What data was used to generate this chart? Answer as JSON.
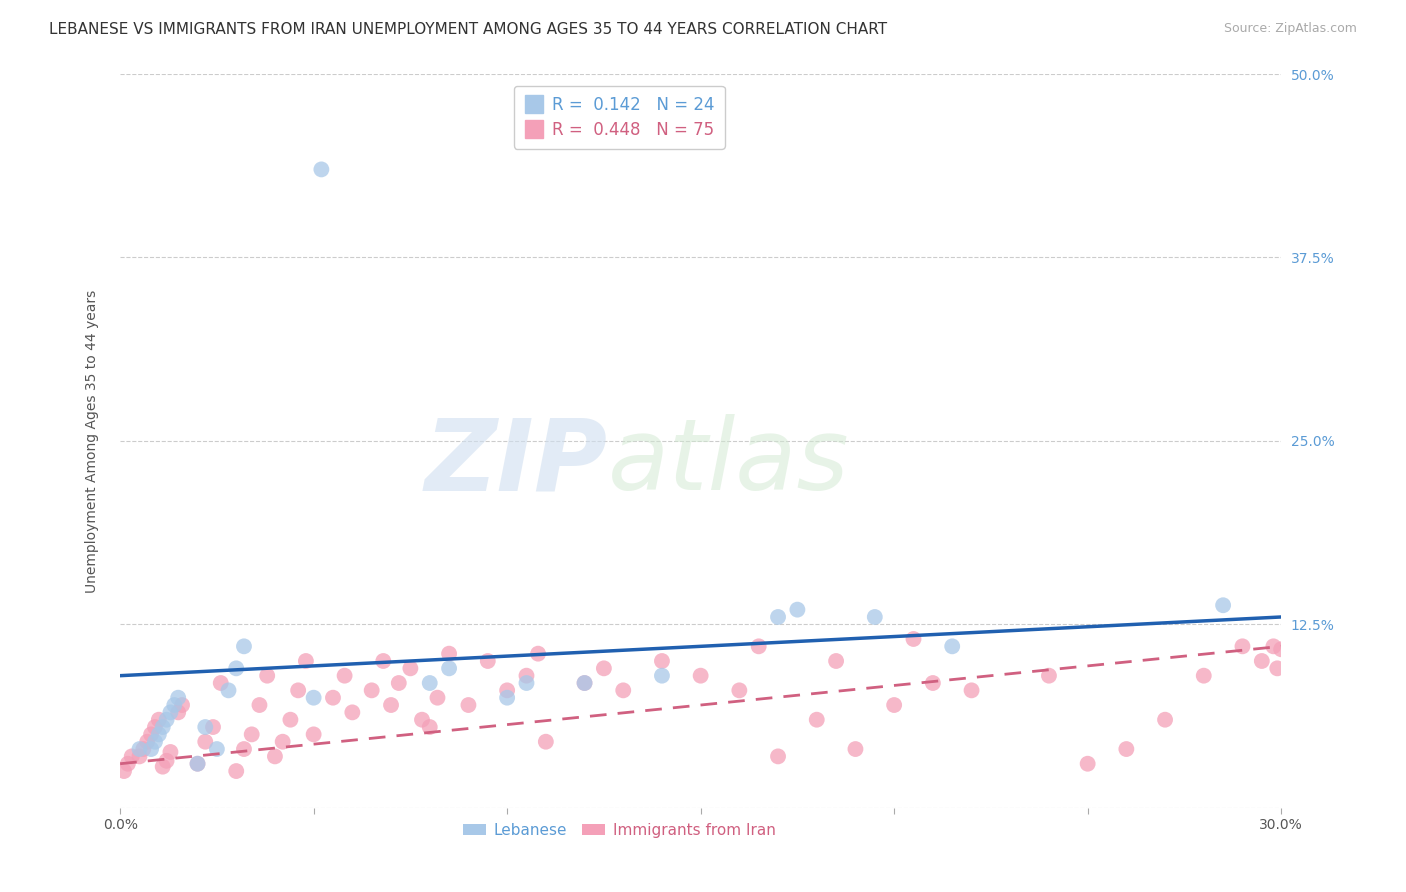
{
  "title": "LEBANESE VS IMMIGRANTS FROM IRAN UNEMPLOYMENT AMONG AGES 35 TO 44 YEARS CORRELATION CHART",
  "source": "Source: ZipAtlas.com",
  "ylabel": "Unemployment Among Ages 35 to 44 years",
  "xlim": [
    0.0,
    0.3
  ],
  "ylim": [
    0.0,
    0.5
  ],
  "yticks": [
    0.0,
    0.125,
    0.25,
    0.375,
    0.5
  ],
  "ytick_labels": [
    "",
    "12.5%",
    "25.0%",
    "37.5%",
    "50.0%"
  ],
  "xticks": [
    0.0,
    0.05,
    0.1,
    0.15,
    0.2,
    0.25,
    0.3
  ],
  "xtick_labels": [
    "0.0%",
    "",
    "",
    "",
    "",
    "",
    "30.0%"
  ],
  "legend_label1": "Lebanese",
  "legend_label2": "Immigrants from Iran",
  "blue_color": "#a8c8e8",
  "pink_color": "#f4a0b8",
  "trend_blue": "#2060b0",
  "trend_pink": "#d06080",
  "blue_x": [
    0.005,
    0.008,
    0.009,
    0.01,
    0.011,
    0.012,
    0.013,
    0.014,
    0.015,
    0.02,
    0.022,
    0.025,
    0.028,
    0.03,
    0.032,
    0.05,
    0.052,
    0.08,
    0.085,
    0.1,
    0.105,
    0.12,
    0.14,
    0.17,
    0.175,
    0.195,
    0.215,
    0.285
  ],
  "blue_y": [
    0.04,
    0.04,
    0.045,
    0.05,
    0.055,
    0.06,
    0.065,
    0.07,
    0.075,
    0.03,
    0.055,
    0.04,
    0.08,
    0.095,
    0.11,
    0.075,
    0.435,
    0.085,
    0.095,
    0.075,
    0.085,
    0.085,
    0.09,
    0.13,
    0.135,
    0.13,
    0.11,
    0.138
  ],
  "pink_x": [
    0.001,
    0.002,
    0.003,
    0.005,
    0.006,
    0.007,
    0.008,
    0.009,
    0.01,
    0.011,
    0.012,
    0.013,
    0.015,
    0.016,
    0.02,
    0.022,
    0.024,
    0.026,
    0.03,
    0.032,
    0.034,
    0.036,
    0.038,
    0.04,
    0.042,
    0.044,
    0.046,
    0.048,
    0.05,
    0.055,
    0.058,
    0.06,
    0.065,
    0.068,
    0.07,
    0.072,
    0.075,
    0.078,
    0.08,
    0.082,
    0.085,
    0.09,
    0.095,
    0.1,
    0.105,
    0.108,
    0.11,
    0.12,
    0.125,
    0.13,
    0.14,
    0.15,
    0.16,
    0.165,
    0.17,
    0.18,
    0.185,
    0.19,
    0.2,
    0.205,
    0.21,
    0.22,
    0.24,
    0.25,
    0.26,
    0.27,
    0.28,
    0.29,
    0.295,
    0.298,
    0.299,
    0.3
  ],
  "pink_y": [
    0.025,
    0.03,
    0.035,
    0.035,
    0.04,
    0.045,
    0.05,
    0.055,
    0.06,
    0.028,
    0.032,
    0.038,
    0.065,
    0.07,
    0.03,
    0.045,
    0.055,
    0.085,
    0.025,
    0.04,
    0.05,
    0.07,
    0.09,
    0.035,
    0.045,
    0.06,
    0.08,
    0.1,
    0.05,
    0.075,
    0.09,
    0.065,
    0.08,
    0.1,
    0.07,
    0.085,
    0.095,
    0.06,
    0.055,
    0.075,
    0.105,
    0.07,
    0.1,
    0.08,
    0.09,
    0.105,
    0.045,
    0.085,
    0.095,
    0.08,
    0.1,
    0.09,
    0.08,
    0.11,
    0.035,
    0.06,
    0.1,
    0.04,
    0.07,
    0.115,
    0.085,
    0.08,
    0.09,
    0.03,
    0.04,
    0.06,
    0.09,
    0.11,
    0.1,
    0.11,
    0.095,
    0.108
  ],
  "blue_trend_x0": 0.0,
  "blue_trend_y0": 0.09,
  "blue_trend_x1": 0.3,
  "blue_trend_y1": 0.13,
  "pink_trend_x0": 0.0,
  "pink_trend_y0": 0.03,
  "pink_trend_x1": 0.3,
  "pink_trend_y1": 0.11,
  "watermark_zip": "ZIP",
  "watermark_atlas": "atlas",
  "title_fontsize": 11,
  "axis_label_fontsize": 10,
  "tick_fontsize": 10
}
